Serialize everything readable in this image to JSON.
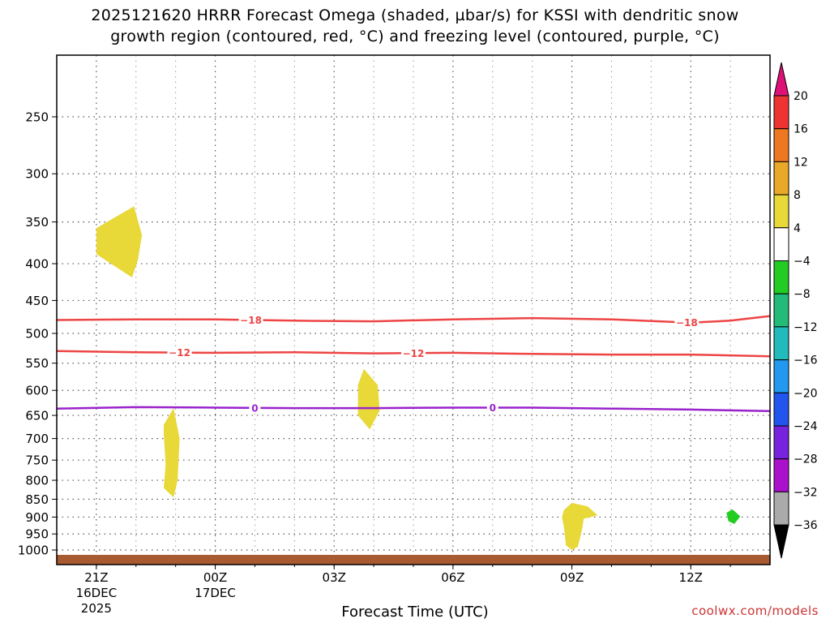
{
  "title": {
    "line1": "2025121620 HRRR Forecast Omega (shaded, µbar/s) for KSSI with dendritic snow",
    "line2": "growth region (contoured, red, °C) and freezing level (contoured, purple, °C)"
  },
  "watermark": "coolwx.com/models",
  "chart_data": {
    "type": "heatmap",
    "title": "2025121620 HRRR Forecast Omega (shaded, µbar/s) for KSSI with dendritic snow growth region (contoured, red, °C) and freezing level (contoured, purple, °C)",
    "xlabel": "Forecast Time (UTC)",
    "ylabel": "",
    "x_ticks": [
      {
        "hour": 21,
        "label": "21Z",
        "sub1": "16DEC",
        "sub2": "2025"
      },
      {
        "hour": 24,
        "label": "00Z",
        "sub1": "17DEC",
        "sub2": ""
      },
      {
        "hour": 27,
        "label": "03Z",
        "sub1": "",
        "sub2": ""
      },
      {
        "hour": 30,
        "label": "06Z",
        "sub1": "",
        "sub2": ""
      },
      {
        "hour": 33,
        "label": "09Z",
        "sub1": "",
        "sub2": ""
      },
      {
        "hour": 36,
        "label": "12Z",
        "sub1": "",
        "sub2": ""
      }
    ],
    "xlim": [
      20,
      38
    ],
    "y_scale": "log",
    "y_ticks": [
      250,
      300,
      350,
      400,
      450,
      500,
      550,
      600,
      650,
      700,
      750,
      800,
      850,
      900,
      950,
      1000
    ],
    "ylim": [
      1020,
      200
    ],
    "grid": true,
    "colorbar": {
      "ticks": [
        "20",
        "16",
        "12",
        "8",
        "4",
        "−4",
        "−8",
        "−12",
        "−16",
        "−20",
        "−24",
        "−28",
        "−32",
        "−36"
      ],
      "colors": [
        "#ee3333",
        "#ee7722",
        "#e8a828",
        "#e8d838",
        "#ffffff",
        "#22cc22",
        "#22bb77",
        "#22bbbb",
        "#2299ee",
        "#2255ee",
        "#7722dd",
        "#aa11cc",
        "#aaaaaa"
      ],
      "top_color": "#dd1177",
      "bottom_color": "#000000"
    },
    "omega_regions": [
      {
        "name": "",
        "color": "#e8d838",
        "points": [
          [
            21.0,
            357
          ],
          [
            21.95,
            333
          ],
          [
            22.15,
            365
          ],
          [
            22.05,
            395
          ],
          [
            21.9,
            418
          ],
          [
            21.0,
            388
          ]
        ]
      },
      {
        "name": "",
        "color": "#e8d838",
        "points": [
          [
            22.7,
            670
          ],
          [
            22.95,
            635
          ],
          [
            23.1,
            700
          ],
          [
            23.05,
            800
          ],
          [
            22.95,
            845
          ],
          [
            22.7,
            820
          ],
          [
            22.75,
            760
          ],
          [
            22.7,
            690
          ]
        ]
      },
      {
        "name": "",
        "color": "#e8d838",
        "points": [
          [
            27.6,
            590
          ],
          [
            27.75,
            560
          ],
          [
            28.1,
            590
          ],
          [
            28.15,
            640
          ],
          [
            27.9,
            680
          ],
          [
            27.6,
            650
          ]
        ]
      },
      {
        "name": "",
        "color": "#e8d838",
        "points": [
          [
            32.8,
            880
          ],
          [
            33.0,
            860
          ],
          [
            33.4,
            870
          ],
          [
            33.65,
            895
          ],
          [
            33.3,
            905
          ],
          [
            33.25,
            940
          ],
          [
            33.15,
            990
          ],
          [
            33.0,
            1000
          ],
          [
            32.85,
            985
          ],
          [
            32.8,
            930
          ],
          [
            32.75,
            900
          ]
        ]
      },
      {
        "name": "",
        "color": "#22cc22",
        "points": [
          [
            36.9,
            888
          ],
          [
            37.05,
            878
          ],
          [
            37.25,
            898
          ],
          [
            37.1,
            920
          ],
          [
            36.95,
            912
          ]
        ]
      }
    ],
    "contours": [
      {
        "value": -18,
        "color": "#ee4444",
        "labels": [
          {
            "x": 24.9,
            "text": "−18"
          },
          {
            "x": 35.9,
            "text": "−18"
          }
        ],
        "points": [
          [
            20,
            479
          ],
          [
            22,
            478
          ],
          [
            24,
            478
          ],
          [
            26,
            480
          ],
          [
            28,
            481
          ],
          [
            30,
            478
          ],
          [
            32,
            476
          ],
          [
            34,
            478
          ],
          [
            36,
            483
          ],
          [
            37,
            480
          ],
          [
            38,
            473
          ]
        ]
      },
      {
        "value": -12,
        "color": "#ee4444",
        "labels": [
          {
            "x": 23.1,
            "text": "−12"
          },
          {
            "x": 29.0,
            "text": "−12"
          }
        ],
        "points": [
          [
            20,
            529
          ],
          [
            22,
            531
          ],
          [
            24,
            532
          ],
          [
            26,
            531
          ],
          [
            28,
            533
          ],
          [
            30,
            532
          ],
          [
            32,
            534
          ],
          [
            34,
            535
          ],
          [
            36,
            535
          ],
          [
            38,
            538
          ]
        ]
      },
      {
        "value": 0,
        "color": "#9922cc",
        "labels": [
          {
            "x": 25.0,
            "text": "0"
          },
          {
            "x": 31.0,
            "text": "0"
          }
        ],
        "points": [
          [
            20,
            636
          ],
          [
            22,
            633
          ],
          [
            24,
            634
          ],
          [
            26,
            635
          ],
          [
            28,
            635
          ],
          [
            30,
            634
          ],
          [
            32,
            634
          ],
          [
            34,
            636
          ],
          [
            36,
            638
          ],
          [
            38,
            641
          ]
        ]
      }
    ],
    "ground_color": "#a85a30"
  }
}
